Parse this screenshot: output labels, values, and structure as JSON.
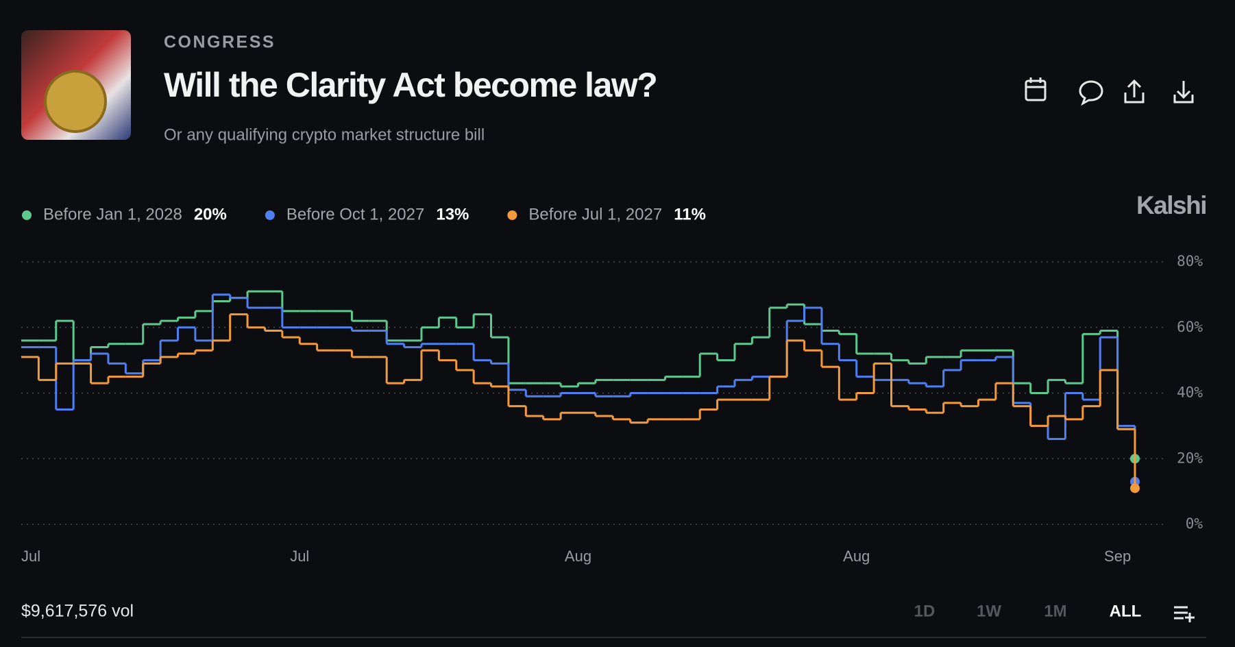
{
  "header": {
    "category": "CONGRESS",
    "title": "Will the Clarity Act become law?",
    "subtitle": "Or any qualifying crypto market structure bill",
    "brand": "Kalshi"
  },
  "chart_data": {
    "type": "line",
    "step": true,
    "grid": true,
    "categories": [
      "Jul",
      null,
      null,
      null,
      null,
      null,
      null,
      null,
      null,
      null,
      null,
      null,
      null,
      null,
      null,
      null,
      "Jul",
      null,
      null,
      null,
      null,
      null,
      null,
      null,
      null,
      null,
      null,
      null,
      null,
      null,
      null,
      null,
      "Aug",
      null,
      null,
      null,
      null,
      null,
      null,
      null,
      null,
      null,
      null,
      null,
      null,
      null,
      null,
      null,
      "Aug",
      null,
      null,
      null,
      null,
      null,
      null,
      null,
      null,
      null,
      null,
      null,
      null,
      null,
      null,
      "Sep",
      null
    ],
    "ylim": [
      0,
      80
    ],
    "yticks": [
      {
        "value": 0,
        "label": "0%"
      },
      {
        "value": 20,
        "label": "20%"
      },
      {
        "value": 40,
        "label": "40%"
      },
      {
        "value": 60,
        "label": "60%"
      },
      {
        "value": 80,
        "label": "80%"
      }
    ],
    "series": [
      {
        "name": "Before Jan 1, 2028",
        "color": "#5ec98f",
        "values": [
          56,
          56,
          62,
          50,
          54,
          55,
          55,
          61,
          62,
          63,
          65,
          68,
          69,
          71,
          71,
          65,
          65,
          65,
          65,
          62,
          62,
          56,
          56,
          60,
          63,
          60,
          64,
          57,
          43,
          43,
          43,
          42,
          43,
          44,
          44,
          44,
          44,
          45,
          45,
          52,
          50,
          55,
          57,
          66,
          67,
          61,
          59,
          58,
          52,
          52,
          50,
          49,
          51,
          51,
          53,
          53,
          53,
          43,
          40,
          44,
          43,
          58,
          59,
          29,
          20
        ],
        "value_labels": [
          null,
          null,
          null,
          null,
          null,
          null,
          null,
          null,
          null,
          null,
          null,
          null,
          null,
          null,
          null,
          null,
          null,
          null,
          null,
          null,
          null,
          null,
          null,
          null,
          null,
          null,
          null,
          null,
          null,
          null,
          null,
          null,
          null,
          null,
          null,
          null,
          null,
          null,
          null,
          null,
          null,
          null,
          null,
          null,
          null,
          null,
          null,
          null,
          null,
          null,
          null,
          null,
          null,
          null,
          null,
          null,
          null,
          null,
          null,
          null,
          null,
          null,
          null,
          null,
          "20%"
        ]
      },
      {
        "name": "Before Oct 1, 2027",
        "color": "#4f7ff0",
        "values": [
          54,
          54,
          35,
          50,
          52,
          49,
          46,
          50,
          56,
          60,
          56,
          70,
          69,
          66,
          66,
          60,
          60,
          60,
          60,
          59,
          59,
          55,
          54,
          55,
          55,
          55,
          50,
          49,
          41,
          39,
          39,
          40,
          40,
          39,
          39,
          40,
          40,
          40,
          40,
          40,
          42,
          44,
          45,
          45,
          62,
          66,
          55,
          50,
          45,
          44,
          44,
          43,
          42,
          47,
          50,
          50,
          51,
          37,
          30,
          26,
          40,
          38,
          57,
          30,
          13
        ],
        "value_labels": [
          null,
          null,
          null,
          null,
          null,
          null,
          null,
          null,
          null,
          null,
          null,
          null,
          null,
          null,
          null,
          null,
          null,
          null,
          null,
          null,
          null,
          null,
          null,
          null,
          null,
          null,
          null,
          null,
          null,
          null,
          null,
          null,
          null,
          null,
          null,
          null,
          null,
          null,
          null,
          null,
          null,
          null,
          null,
          null,
          null,
          null,
          null,
          null,
          null,
          null,
          null,
          null,
          null,
          null,
          null,
          null,
          null,
          null,
          null,
          null,
          null,
          null,
          null,
          null,
          "13%"
        ]
      },
      {
        "name": "Before Jul 1, 2027",
        "color": "#f39a3a",
        "values": [
          51,
          44,
          49,
          49,
          43,
          45,
          45,
          49,
          51,
          52,
          53,
          56,
          64,
          60,
          59,
          57,
          55,
          53,
          53,
          51,
          51,
          43,
          44,
          53,
          50,
          47,
          43,
          42,
          36,
          33,
          32,
          34,
          34,
          33,
          32,
          31,
          32,
          32,
          32,
          35,
          38,
          38,
          38,
          45,
          56,
          53,
          48,
          38,
          40,
          49,
          36,
          35,
          34,
          37,
          36,
          38,
          43,
          36,
          30,
          33,
          32,
          36,
          47,
          29,
          11
        ],
        "value_labels": [
          null,
          null,
          null,
          null,
          null,
          null,
          null,
          null,
          null,
          null,
          null,
          null,
          null,
          null,
          null,
          null,
          null,
          null,
          null,
          null,
          null,
          null,
          null,
          null,
          null,
          null,
          null,
          null,
          null,
          null,
          null,
          null,
          null,
          null,
          null,
          null,
          null,
          null,
          null,
          null,
          null,
          null,
          null,
          null,
          null,
          null,
          null,
          null,
          null,
          null,
          null,
          null,
          null,
          null,
          null,
          null,
          null,
          null,
          null,
          null,
          null,
          null,
          null,
          null,
          "11%"
        ]
      }
    ]
  },
  "footer": {
    "volume": "$9,617,576 vol",
    "ranges": [
      "1D",
      "1W",
      "1M",
      "ALL"
    ]
  }
}
